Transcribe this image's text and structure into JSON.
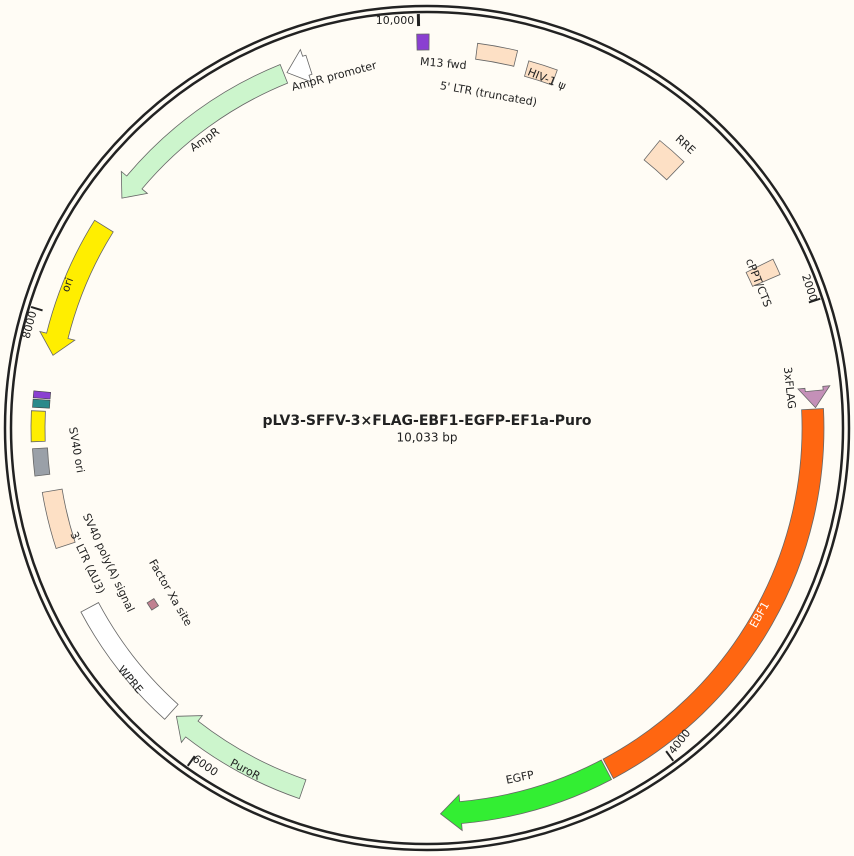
{
  "title": "pLV3-SFFV-3×FLAG-EBF1-EGFP-EF1a-Puro",
  "size": "10,033 bp",
  "ticks": [
    "10,000",
    "2000",
    "4000",
    "6000",
    "8000"
  ],
  "features": [
    {
      "label": "M13 fwd"
    },
    {
      "label": "5' LTR (truncated)"
    },
    {
      "label": "HIV-1 ψ"
    },
    {
      "label": "RRE"
    },
    {
      "label": "cPPT/CTS"
    },
    {
      "label": "3xFLAG"
    },
    {
      "label": "EBF1"
    },
    {
      "label": "EGFP"
    },
    {
      "label": "PuroR"
    },
    {
      "label": "WPRE"
    },
    {
      "label": "3' LTR (ΔU3)"
    },
    {
      "label": "SV40 poly(A) signal"
    },
    {
      "label": "SV40 ori"
    },
    {
      "label": "Factor Xa site"
    },
    {
      "label": "ori"
    },
    {
      "label": "AmpR"
    },
    {
      "label": "AmpR promoter"
    }
  ]
}
